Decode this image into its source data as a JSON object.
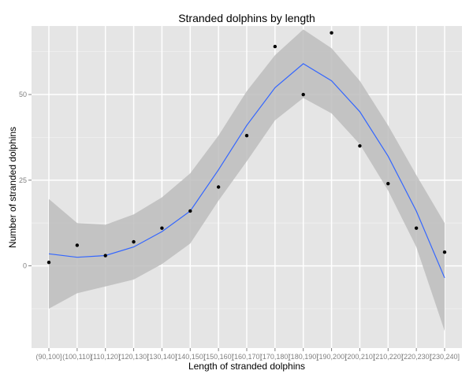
{
  "chart_data": {
    "type": "scatter",
    "title": "Stranded dolphins by length",
    "xlabel": "Length of stranded dolphins",
    "ylabel": "Number of stranded dolphins",
    "categories": [
      "(90,100]",
      "(100,110]",
      "(110,120]",
      "(120,130]",
      "(130,140]",
      "(140,150]",
      "(150,160]",
      "(160,170]",
      "(170,180]",
      "(180,190]",
      "(190,200]",
      "(200,210]",
      "(210,220]",
      "(220,230]",
      "(230,240]"
    ],
    "ylim": [
      -24,
      70
    ],
    "yticks": [
      0,
      25,
      50
    ],
    "grid": true,
    "points": [
      1,
      6,
      3,
      7,
      11,
      16,
      23,
      38,
      64,
      50,
      68,
      35,
      24,
      11,
      4
    ],
    "smooth": {
      "fit": [
        3.5,
        2.5,
        3,
        5.5,
        10,
        16,
        28,
        41,
        52,
        59,
        54,
        45,
        32,
        16,
        -3.5
      ],
      "lower": [
        -12.5,
        -8,
        -6,
        -4,
        0.5,
        6.5,
        19,
        30.5,
        42.5,
        49,
        44.5,
        35.5,
        22,
        5.5,
        -19
      ],
      "upper": [
        19.5,
        12.5,
        12,
        15,
        20,
        27,
        38,
        51,
        61.5,
        69,
        63.5,
        54,
        41,
        26.5,
        12.5
      ]
    },
    "colors": {
      "panel": "#e5e5e5",
      "grid_major": "#ffffff",
      "grid_minor": "#f2f2f2",
      "ribbon": "#bdbdbd",
      "line": "#3366ff",
      "point": "#000000"
    }
  }
}
